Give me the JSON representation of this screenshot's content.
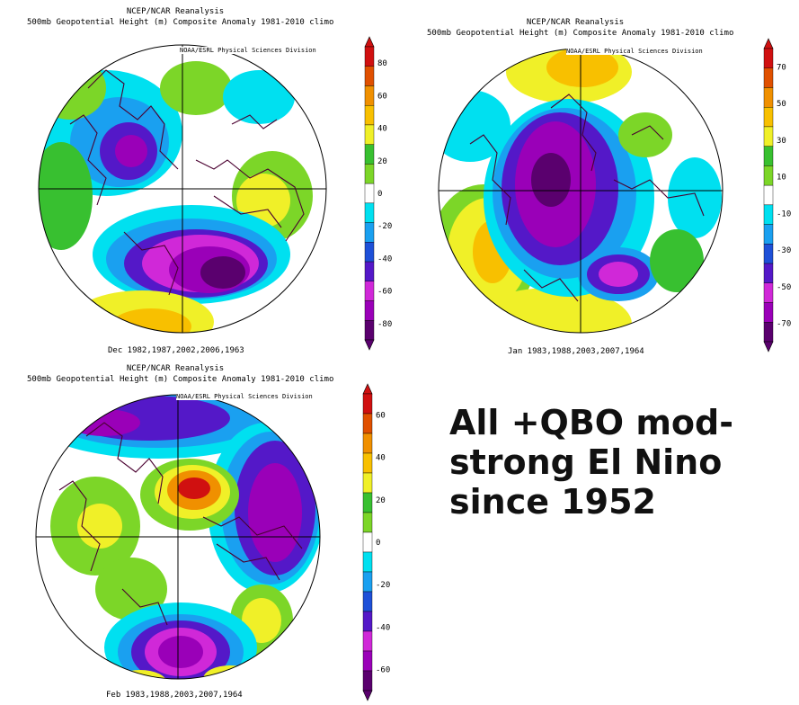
{
  "panels": [
    {
      "header_line1": "NCEP/NCAR Reanalysis",
      "header_line2": "500mb Geopotential Height (m) Composite Anomaly 1981-2010 climo",
      "credit": "NOAA/ESRL Physical Sciences Division",
      "dates": "Dec 1982,1987,2002,2006,1963",
      "colorbar_labels": [
        "80",
        "60",
        "40",
        "20",
        "0",
        "-20",
        "-40",
        "-60",
        "-80"
      ]
    },
    {
      "header_line1": "NCEP/NCAR Reanalysis",
      "header_line2": "500mb Geopotential Height (m) Composite Anomaly 1981-2010 climo",
      "credit": "NOAA/ESRL Physical Sciences Division",
      "dates": "Jan 1983,1988,2003,2007,1964",
      "colorbar_labels": [
        "70",
        "50",
        "30",
        "10",
        "-10",
        "-30",
        "-50",
        "-70"
      ]
    },
    {
      "header_line1": "NCEP/NCAR Reanalysis",
      "header_line2": "500mb Geopotential Height (m) Composite Anomaly 1981-2010 climo",
      "credit": "NOAA/ESRL Physical Sciences Division",
      "dates": "Feb 1983,1988,2003,2007,1964",
      "colorbar_labels": [
        "60",
        "40",
        "20",
        "0",
        "-20",
        "-40",
        "-60"
      ]
    }
  ],
  "headline": {
    "line1": "All +QBO mod-",
    "line2": "strong El Nino",
    "line3": "since 1952"
  },
  "colors": {
    "palette": [
      "#5a006e",
      "#9a00b8",
      "#d028d8",
      "#5418c8",
      "#1e50d8",
      "#1aa0f0",
      "#00e0f0",
      "#ffffff",
      "#7cd628",
      "#38c030",
      "#f0f028",
      "#f8c000",
      "#f09000",
      "#e05000",
      "#d01010"
    ],
    "coastline": "#4a0030"
  }
}
